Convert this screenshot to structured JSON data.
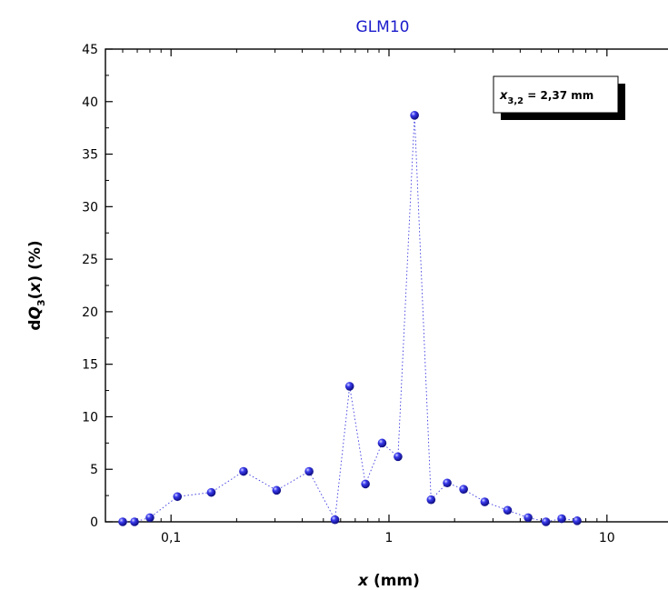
{
  "chart_data": {
    "type": "scatter",
    "title": "GLM10",
    "xlabel": {
      "italic": "x",
      "rest": " (mm)"
    },
    "ylabel": {
      "prefix": "d",
      "italic_main": "Q",
      "subscript": "3",
      "middle": "(",
      "italic_arg": "x",
      "suffix": ") (%)"
    },
    "x_scale": "log",
    "xlim": [
      0.05,
      20
    ],
    "ylim": [
      0,
      45
    ],
    "y_ticks": [
      0,
      5,
      10,
      15,
      20,
      25,
      30,
      35,
      40,
      45
    ],
    "x_ticks": [
      {
        "value": 0.1,
        "label": "0,1"
      },
      {
        "value": 1,
        "label": "1"
      },
      {
        "value": 10,
        "label": "10"
      }
    ],
    "line_style": "dotted",
    "marker": "sphere",
    "series_color": "#1a1acc",
    "points": [
      {
        "x": 0.06,
        "y": 0.0
      },
      {
        "x": 0.068,
        "y": 0.0
      },
      {
        "x": 0.08,
        "y": 0.4
      },
      {
        "x": 0.107,
        "y": 2.4
      },
      {
        "x": 0.153,
        "y": 2.8
      },
      {
        "x": 0.215,
        "y": 4.8
      },
      {
        "x": 0.305,
        "y": 3.0
      },
      {
        "x": 0.43,
        "y": 4.8
      },
      {
        "x": 0.565,
        "y": 0.2
      },
      {
        "x": 0.66,
        "y": 12.9
      },
      {
        "x": 0.78,
        "y": 3.6
      },
      {
        "x": 0.93,
        "y": 7.5
      },
      {
        "x": 1.1,
        "y": 6.2
      },
      {
        "x": 1.31,
        "y": 38.7
      },
      {
        "x": 1.56,
        "y": 2.1
      },
      {
        "x": 1.85,
        "y": 3.7
      },
      {
        "x": 2.2,
        "y": 3.1
      },
      {
        "x": 2.75,
        "y": 1.9
      },
      {
        "x": 3.5,
        "y": 1.1
      },
      {
        "x": 4.35,
        "y": 0.4
      },
      {
        "x": 5.25,
        "y": 0.0
      },
      {
        "x": 6.2,
        "y": 0.3
      },
      {
        "x": 7.3,
        "y": 0.1
      }
    ],
    "annotation": {
      "symbol": "x",
      "subscript": "3,2",
      "text": " = 2,37 mm"
    }
  }
}
